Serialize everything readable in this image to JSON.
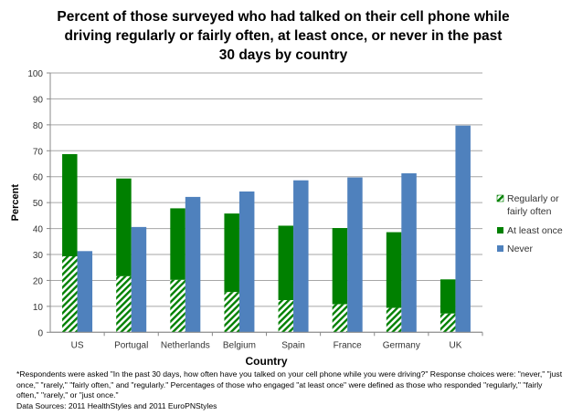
{
  "chart_data": {
    "type": "bar",
    "title": "Percent of those surveyed who had talked on their cell phone while driving regularly or fairly often, at least once, or never in the past 30 days by country",
    "xlabel": "Country",
    "ylabel": "Percent",
    "ylim": [
      0,
      100
    ],
    "yticks": [
      0,
      10,
      20,
      30,
      40,
      50,
      60,
      70,
      80,
      90,
      100
    ],
    "grid": true,
    "legend_position": "right",
    "categories": [
      "US",
      "Portugal",
      "Netherlands",
      "Belgium",
      "Spain",
      "France",
      "Germany",
      "UK"
    ],
    "series": [
      {
        "name": "Regularly or fairly often",
        "color": "#008000",
        "pattern": "hatched",
        "values": [
          29.3,
          21.6,
          20.2,
          15.5,
          12.4,
          10.8,
          9.4,
          7.2
        ]
      },
      {
        "name": "At least once",
        "color": "#008000",
        "values": [
          68.7,
          59.3,
          47.8,
          45.8,
          41.1,
          40.2,
          38.6,
          20.4
        ]
      },
      {
        "name": "Never",
        "color": "#4F81BD",
        "values": [
          31.3,
          40.6,
          52.2,
          54.3,
          58.6,
          59.7,
          61.3,
          79.7
        ]
      }
    ],
    "legend": [
      "Regularly or fairly often",
      "At least once",
      "Never"
    ],
    "legend_lines": [
      [
        "Regularly or",
        "fairly often"
      ],
      [
        "At least once"
      ],
      [
        "Never"
      ]
    ]
  },
  "footnote": "*Respondents were asked \"In the past 30 days, how often have you talked on your cell phone while you were driving?\" Response choices were: \"never,\" \"just once,\" \"rarely,\" \"fairly often,\" and \"regularly.\" Percentages of those who engaged \"at least once\" were defined as those who responded \"regularly,\" \"fairly often,\" \"rarely,\" or \"just once.\"",
  "source": "Data Sources: 2011 HealthStyles and 2011 EuroPNStyles"
}
